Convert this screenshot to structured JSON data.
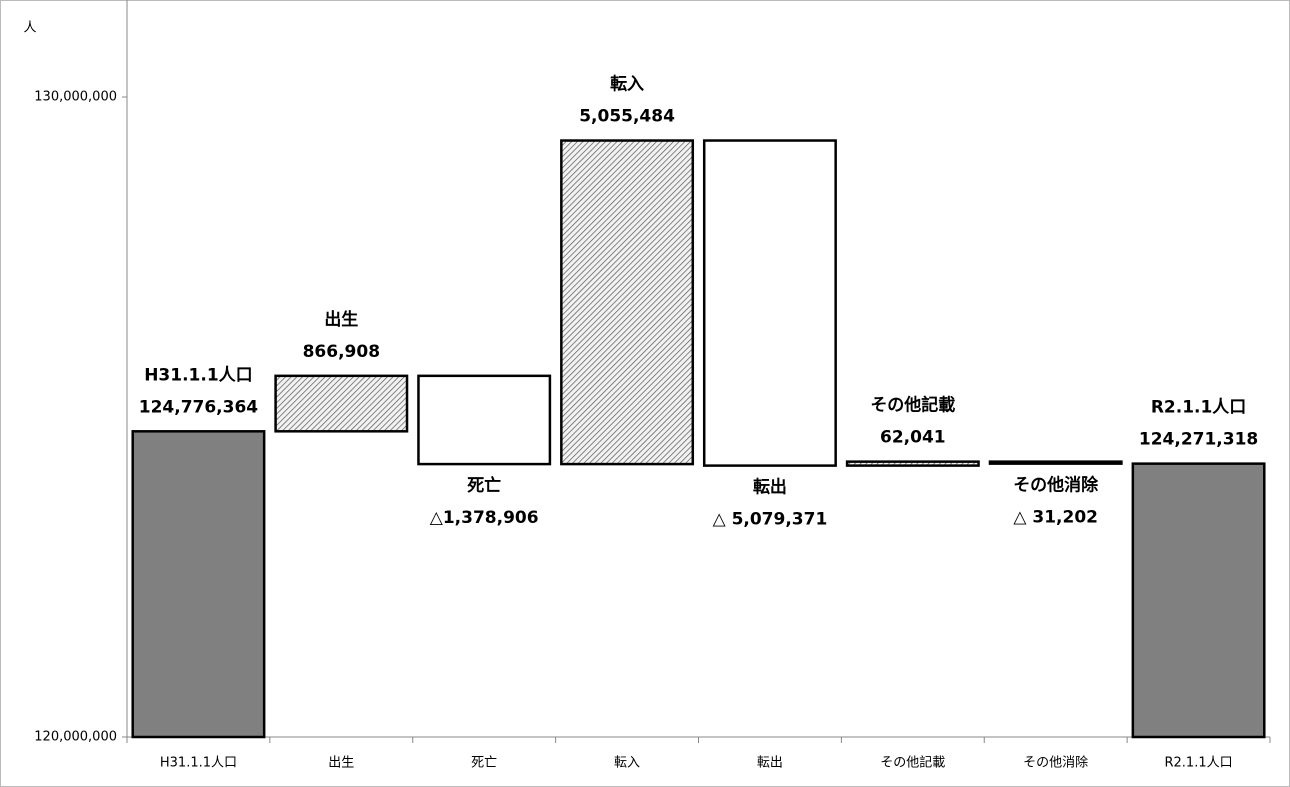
{
  "chart_data": {
    "type": "waterfall",
    "y_unit_label": "人",
    "categories": [
      "H31.1.1人口",
      "出生",
      "死亡",
      "転入",
      "転出",
      "その他記載",
      "その他消除",
      "R2.1.1人口"
    ],
    "measure": [
      "absolute",
      "relative",
      "relative",
      "relative",
      "relative",
      "relative",
      "relative",
      "absolute"
    ],
    "values": [
      124776364,
      866908,
      -1378906,
      5055484,
      -5079371,
      62041,
      -31202,
      124271318
    ],
    "value_labels": [
      "124,776,364",
      "866,908",
      "△1,378,906",
      "5,055,484",
      "△ 5,079,371",
      "62,041",
      "△ 31,202",
      "124,271,318"
    ],
    "colors": {
      "absolute": "#808080",
      "increase": "hatch",
      "decrease": "#ffffff"
    },
    "ylim": [
      120000000,
      130000000
    ],
    "yticks": [
      {
        "value": 120000000,
        "label": "120,000,000"
      },
      {
        "value": 130000000,
        "label": "130,000,000"
      }
    ]
  }
}
